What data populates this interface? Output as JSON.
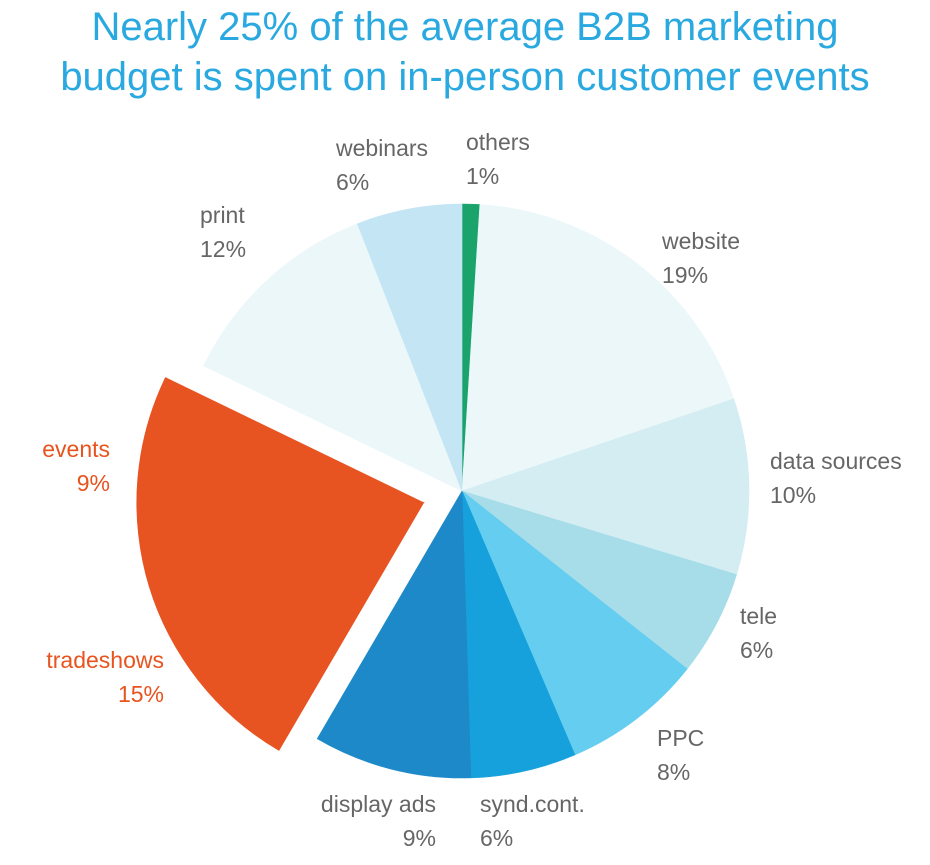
{
  "title": {
    "line1": "Nearly 25% of the average B2B marketing",
    "line2": "budget is spent on in-person customer events"
  },
  "chart_data": {
    "type": "pie",
    "title": "Nearly 25% of the average B2B marketing budget is spent on in-person customer events",
    "start_angle_deg": 0,
    "direction": "clockwise",
    "slices": [
      {
        "label": "others",
        "value": 1,
        "value_label": "1%",
        "color": "#1aa36a",
        "exploded": false
      },
      {
        "label": "website",
        "value": 19,
        "value_label": "19%",
        "color": "#ebf7f9",
        "exploded": false
      },
      {
        "label": "data sources",
        "value": 10,
        "value_label": "10%",
        "color": "#d3edf3",
        "exploded": false
      },
      {
        "label": "tele",
        "value": 6,
        "value_label": "6%",
        "color": "#a6dde9",
        "exploded": false
      },
      {
        "label": "PPC",
        "value": 8,
        "value_label": "8%",
        "color": "#65cdef",
        "exploded": false
      },
      {
        "label": "synd.cont.",
        "value": 6,
        "value_label": "6%",
        "color": "#17a1dc",
        "exploded": false
      },
      {
        "label": "display ads",
        "value": 9,
        "value_label": "9%",
        "color": "#1e89c9",
        "exploded": false
      },
      {
        "label": "tradeshows",
        "value": 15,
        "value_label": "15%",
        "color": "#e85322",
        "exploded": true,
        "highlight": true
      },
      {
        "label": "events",
        "value": 9,
        "value_label": "9%",
        "color": "#e85322",
        "exploded": true,
        "highlight": true
      },
      {
        "label": "print",
        "value": 12,
        "value_label": "12%",
        "color": "#ebf7f9",
        "exploded": false
      },
      {
        "label": "webinars",
        "value": 6,
        "value_label": "6%",
        "color": "#c4e6f4",
        "exploded": false
      }
    ]
  }
}
